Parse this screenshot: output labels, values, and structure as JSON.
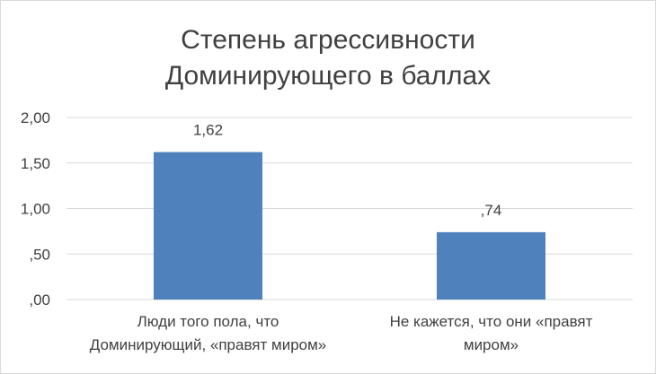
{
  "chart_data": {
    "type": "bar",
    "title_lines": [
      "Степень агрессивности",
      "Доминирующего в баллах"
    ],
    "categories": [
      [
        "Люди того пола, что",
        "Доминирующий, «правят миром»"
      ],
      [
        "Не кажется, что они «правят",
        "миром»"
      ]
    ],
    "values": [
      1.62,
      0.74
    ],
    "data_labels": [
      "1,62",
      ",74"
    ],
    "yticks": [
      0,
      0.5,
      1,
      1.5,
      2
    ],
    "ytick_labels": [
      ",00",
      ",50",
      "1,00",
      "1,50",
      "2,00"
    ],
    "ylim": [
      0,
      2
    ],
    "grid": true,
    "legend": "none",
    "bar_color": "#4f81bd",
    "grid_color": "#d9d9d9"
  }
}
